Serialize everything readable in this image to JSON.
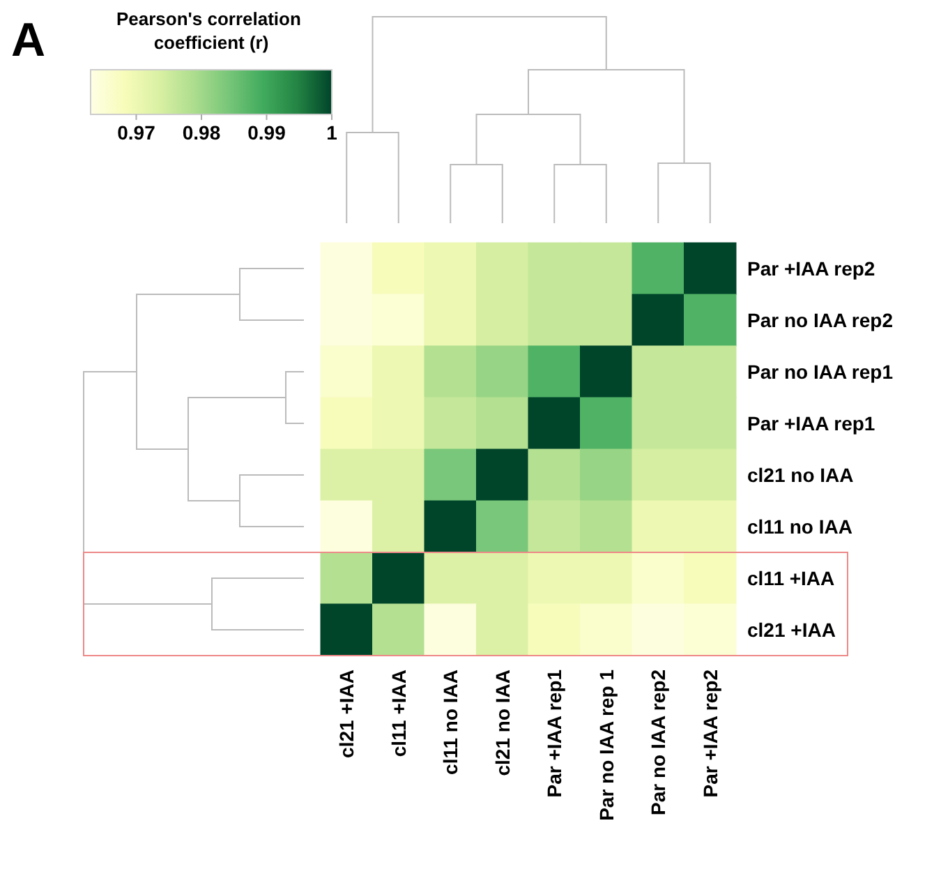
{
  "chart_data": {
    "type": "heatmap",
    "annotations": [
      "A"
    ],
    "clabel": "Pearson's correlation coefficient (r)",
    "categories": [
      "cl21 +IAA",
      "cl11 +IAA",
      "cl11 no IAA",
      "cl21 no IAA",
      "Par +IAA rep1",
      "Par no IAA rep 1",
      "Par no IAA rep2",
      "Par +IAA rep2"
    ],
    "y_categories": [
      "Par +IAA rep2",
      "Par no IAA rep2",
      "Par no IAA rep1",
      "Par +IAA rep1",
      "cl21 no IAA",
      "cl11 no IAA",
      "cl11 +IAA",
      "cl21 +IAA"
    ],
    "cells": [
      [
        0.964,
        0.968,
        0.97,
        0.974,
        0.976,
        0.976,
        0.988,
        1
      ],
      [
        0.964,
        0.965,
        0.97,
        0.974,
        0.976,
        0.976,
        1,
        0.988
      ],
      [
        0.966,
        0.97,
        0.978,
        0.981,
        0.988,
        1,
        0.976,
        0.976
      ],
      [
        0.968,
        0.97,
        0.976,
        0.978,
        1,
        0.988,
        0.976,
        0.976
      ],
      [
        0.973,
        0.973,
        0.984,
        1,
        0.978,
        0.981,
        0.974,
        0.974
      ],
      [
        0.964,
        0.973,
        1,
        0.984,
        0.976,
        0.978,
        0.97,
        0.97
      ],
      [
        0.978,
        1,
        0.973,
        0.973,
        0.97,
        0.97,
        0.966,
        0.968
      ],
      [
        1,
        0.978,
        0.964,
        0.973,
        0.968,
        0.966,
        0.964,
        0.965
      ]
    ],
    "clim": [
      0.963,
      1
    ],
    "cticks": [
      0.97,
      0.98,
      0.99,
      1
    ]
  }
}
